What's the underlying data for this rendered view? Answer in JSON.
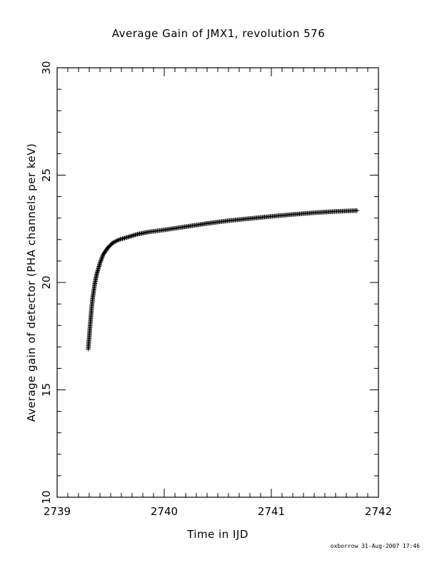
{
  "chart_data": {
    "type": "scatter",
    "title": "Average Gain of JMX1, revolution 576",
    "xlabel": "Time in IJD",
    "ylabel": "Average gain of detector (PHA channels per keV)",
    "xlim": [
      2739,
      2742
    ],
    "ylim": [
      10,
      30
    ],
    "xticks": [
      "2739",
      "2740",
      "2741",
      "2742"
    ],
    "yticks": [
      "10",
      "15",
      "20",
      "25",
      "30"
    ],
    "marker": "plus",
    "marker_color": "#000000",
    "grid": false,
    "series": [
      {
        "points": [
          [
            2739.29,
            16.9
          ],
          [
            2739.3,
            17.5
          ],
          [
            2739.31,
            18.1
          ],
          [
            2739.32,
            18.7
          ],
          [
            2739.33,
            19.2
          ],
          [
            2739.35,
            19.9
          ],
          [
            2739.37,
            20.4
          ],
          [
            2739.4,
            20.9
          ],
          [
            2739.43,
            21.3
          ],
          [
            2739.47,
            21.6
          ],
          [
            2739.52,
            21.85
          ],
          [
            2739.58,
            22.0
          ],
          [
            2739.65,
            22.1
          ],
          [
            2739.75,
            22.25
          ],
          [
            2739.85,
            22.35
          ],
          [
            2740.0,
            22.45
          ],
          [
            2740.2,
            22.6
          ],
          [
            2740.4,
            22.75
          ],
          [
            2740.6,
            22.88
          ],
          [
            2740.8,
            22.98
          ],
          [
            2741.0,
            23.08
          ],
          [
            2741.2,
            23.17
          ],
          [
            2741.4,
            23.25
          ],
          [
            2741.6,
            23.31
          ],
          [
            2741.8,
            23.35
          ]
        ]
      }
    ]
  },
  "footer": {
    "credit": "oxborrow 31-Aug-2007 17:46"
  }
}
